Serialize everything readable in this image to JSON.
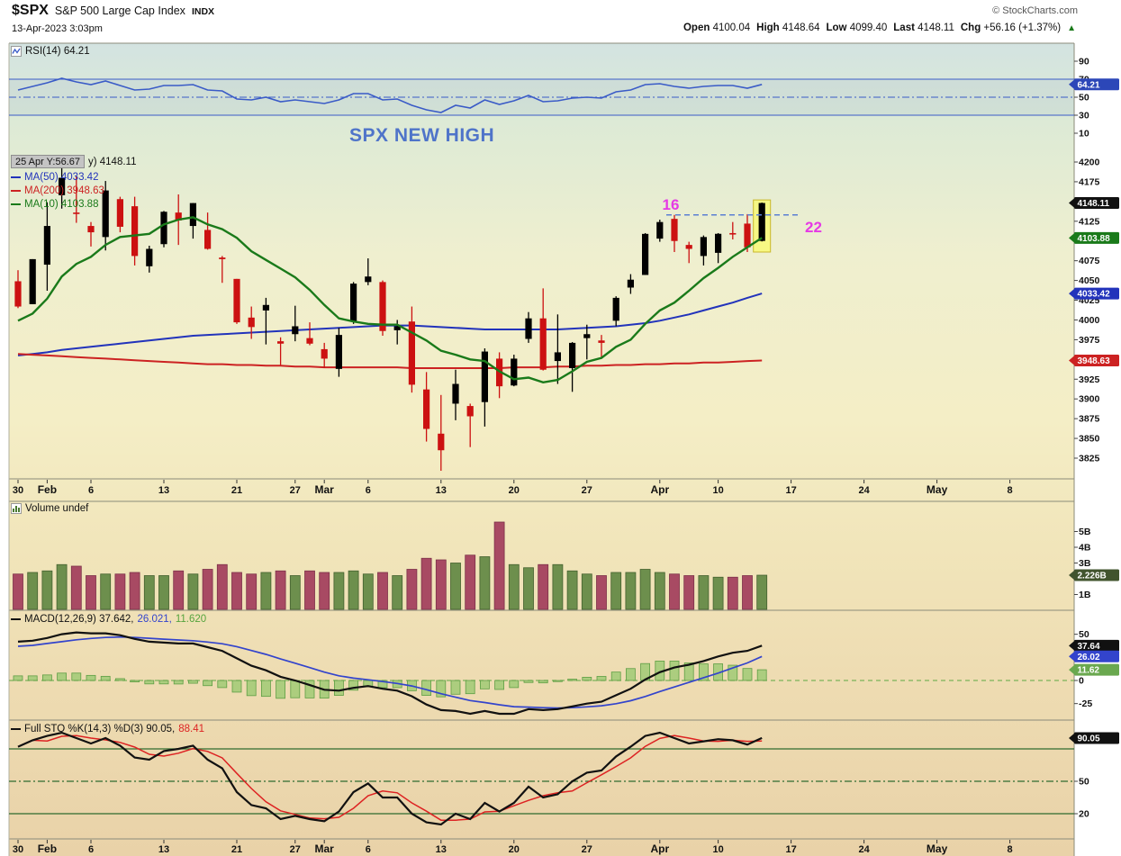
{
  "header": {
    "symbol": "$SPX",
    "name": "S&P 500 Large Cap Index",
    "exchange": "INDX",
    "copyright": "© StockCharts.com",
    "datetime": "13-Apr-2023 3:03pm",
    "quote": {
      "open_label": "Open",
      "open": "4100.04",
      "high_label": "High",
      "high": "4148.64",
      "low_label": "Low",
      "low": "4099.40",
      "last_label": "Last",
      "last": "4148.11",
      "chg_label": "Chg",
      "chg": "+56.16 (+1.37%)",
      "arrow": "▲"
    }
  },
  "panels": {
    "rsi": {
      "legend": "RSI(14) 64.21"
    },
    "price": {
      "tooltip": "25 Apr Y:56.67",
      "title_tail": "y) 4148.11",
      "ma50_label": "MA(50) 4033.42",
      "ma200_label": "MA(200) 3948.63",
      "ma10_label": "MA(10) 4103.88",
      "annotation": "SPX NEW HIGH"
    },
    "volume": {
      "legend": "Volume undef"
    },
    "macd": {
      "legend_main": "MACD(12,26,9) 37.642,",
      "legend_signal": "26.021,",
      "legend_hist": "11.620"
    },
    "sto": {
      "legend_main": "Full STO %K(14,3) %D(3) 90.05,",
      "legend_d": "88.41"
    }
  },
  "x_axis": {
    "ticks": [
      {
        "t": "30",
        "i": 0,
        "b": 0
      },
      {
        "t": "Feb",
        "i": 2,
        "b": 1
      },
      {
        "t": "6",
        "i": 5,
        "b": 0
      },
      {
        "t": "13",
        "i": 10,
        "b": 0
      },
      {
        "t": "21",
        "i": 15,
        "b": 0
      },
      {
        "t": "27",
        "i": 19,
        "b": 0
      },
      {
        "t": "Mar",
        "i": 21,
        "b": 1
      },
      {
        "t": "6",
        "i": 24,
        "b": 0
      },
      {
        "t": "13",
        "i": 29,
        "b": 0
      },
      {
        "t": "20",
        "i": 34,
        "b": 0
      },
      {
        "t": "27",
        "i": 39,
        "b": 0
      },
      {
        "t": "Apr",
        "i": 44,
        "b": 1
      },
      {
        "t": "10",
        "i": 48,
        "b": 0
      },
      {
        "t": "17",
        "i": 53,
        "b": 0
      },
      {
        "t": "24",
        "i": 58,
        "b": 0
      },
      {
        "t": "May",
        "i": 63,
        "b": 1
      },
      {
        "t": "8",
        "i": 68,
        "b": 0
      }
    ]
  },
  "chart_data": [
    {
      "type": "line",
      "panel": "rsi",
      "title": "RSI(14) 64.21",
      "ylim": [
        0,
        100
      ],
      "color": "#3a5bc7",
      "last": 64.21,
      "last_label": "64.21",
      "hlines": [
        {
          "v": 70,
          "style": "solid"
        },
        {
          "v": 50,
          "style": "dashdot"
        },
        {
          "v": 30,
          "style": "solid"
        }
      ],
      "yticks": [
        90,
        70,
        50,
        30,
        10
      ],
      "values": [
        58,
        62,
        66,
        71,
        67,
        64,
        68,
        63,
        58,
        59,
        63,
        63,
        64,
        58,
        57,
        48,
        47,
        50,
        45,
        47,
        45,
        43,
        47,
        54,
        54,
        47,
        48,
        41,
        36,
        33,
        41,
        38,
        47,
        42,
        46,
        52,
        45,
        46,
        49,
        50,
        49,
        56,
        58,
        64,
        65,
        62,
        60,
        62,
        63,
        63,
        60,
        64.21
      ]
    },
    {
      "type": "candlestick",
      "panel": "price",
      "title": "$SPX (Daily) 4148.11",
      "up_color": "#000000",
      "down_color": "#cc1111",
      "dates": [
        "Jan 30",
        "Jan 31",
        "Feb 1",
        "Feb 2",
        "Feb 3",
        "Feb 6",
        "Feb 7",
        "Feb 8",
        "Feb 9",
        "Feb 10",
        "Feb 13",
        "Feb 14",
        "Feb 15",
        "Feb 16",
        "Feb 17",
        "Feb 21",
        "Feb 22",
        "Feb 23",
        "Feb 24",
        "Feb 27",
        "Feb 28",
        "Mar 1",
        "Mar 2",
        "Mar 3",
        "Mar 6",
        "Mar 7",
        "Mar 8",
        "Mar 9",
        "Mar 10",
        "Mar 13",
        "Mar 14",
        "Mar 15",
        "Mar 16",
        "Mar 17",
        "Mar 20",
        "Mar 21",
        "Mar 22",
        "Mar 23",
        "Mar 24",
        "Mar 27",
        "Mar 28",
        "Mar 29",
        "Mar 30",
        "Mar 31",
        "Apr 3",
        "Apr 4",
        "Apr 5",
        "Apr 6",
        "Apr 10",
        "Apr 11",
        "Apr 12",
        "Apr 13"
      ],
      "ohlc": [
        [
          4049,
          4063,
          4015,
          4017
        ],
        [
          4020,
          4077,
          4020,
          4077
        ],
        [
          4070,
          4149,
          4037,
          4119
        ],
        [
          4158,
          4195,
          4141,
          4180
        ],
        [
          4136,
          4182,
          4123,
          4136
        ],
        [
          4119,
          4124,
          4093,
          4111
        ],
        [
          4105,
          4176,
          4088,
          4164
        ],
        [
          4153,
          4156,
          4111,
          4118
        ],
        [
          4144,
          4156,
          4069,
          4081
        ],
        [
          4068,
          4094,
          4060,
          4090
        ],
        [
          4096,
          4138,
          4092,
          4137
        ],
        [
          4126,
          4159,
          4095,
          4136
        ],
        [
          4119,
          4148,
          4103,
          4148
        ],
        [
          4114,
          4136,
          4089,
          4090
        ],
        [
          4077,
          4081,
          4047,
          4079
        ],
        [
          4052,
          4052,
          3995,
          3997
        ],
        [
          4003,
          4017,
          3976,
          3991
        ],
        [
          4019,
          4028,
          3969,
          4012
        ],
        [
          3973,
          3978,
          3943,
          3970
        ],
        [
          3992,
          4018,
          3973,
          3982
        ],
        [
          3977,
          3997,
          3968,
          3970
        ],
        [
          3963,
          3971,
          3939,
          3951
        ],
        [
          3938,
          3990,
          3928,
          3981
        ],
        [
          3998,
          4048,
          3995,
          4046
        ],
        [
          4055,
          4078,
          4044,
          4048
        ],
        [
          4048,
          4050,
          3980,
          3986
        ],
        [
          3987,
          4000,
          3969,
          3992
        ],
        [
          3998,
          4017,
          3908,
          3918
        ],
        [
          3912,
          3934,
          3846,
          3862
        ],
        [
          3835,
          3905,
          3809,
          3856
        ],
        [
          3894,
          3937,
          3873,
          3919
        ],
        [
          3878,
          3894,
          3839,
          3891
        ],
        [
          3896,
          3964,
          3865,
          3960
        ],
        [
          3951,
          3959,
          3901,
          3916
        ],
        [
          3917,
          3956,
          3916,
          3951
        ],
        [
          3976,
          4010,
          3971,
          4002
        ],
        [
          4002,
          4040,
          3936,
          3937
        ],
        [
          3959,
          4007,
          3919,
          3948
        ],
        [
          3939,
          3972,
          3909,
          3971
        ],
        [
          3982,
          3994,
          3950,
          3977
        ],
        [
          3974,
          3981,
          3951,
          3971
        ],
        [
          3999,
          4030,
          3992,
          4028
        ],
        [
          4041,
          4058,
          4033,
          4051
        ],
        [
          4057,
          4110,
          4057,
          4109
        ],
        [
          4103,
          4127,
          4099,
          4124
        ],
        [
          4128,
          4133,
          4086,
          4100
        ],
        [
          4095,
          4099,
          4072,
          4090
        ],
        [
          4081,
          4107,
          4069,
          4105
        ],
        [
          4085,
          4110,
          4072,
          4109.11
        ],
        [
          4110,
          4124,
          4102,
          4108.94
        ],
        [
          4122,
          4134,
          4086,
          4091.95
        ],
        [
          4100.04,
          4148.64,
          4099.4,
          4148.11
        ]
      ],
      "overlays": [
        {
          "name": "MA(10)",
          "color": "#1a7a1a",
          "width": 2.4,
          "values": [
            3999,
            4008,
            4027,
            4055,
            4071,
            4080,
            4095,
            4105,
            4107,
            4109,
            4121,
            4127,
            4130,
            4121,
            4115,
            4104,
            4087,
            4076,
            4065,
            4054,
            4038,
            4019,
            4002,
            3998,
            3995,
            3994,
            3994,
            3984,
            3974,
            3961,
            3956,
            3950,
            3948,
            3935,
            3925,
            3927,
            3921,
            3924,
            3935,
            3947,
            3952,
            3966,
            3975,
            3995,
            4012,
            4022,
            4037,
            4053,
            4066,
            4080,
            4092,
            4103.88
          ]
        },
        {
          "name": "MA(50)",
          "color": "#2233bb",
          "width": 2,
          "values": [
            3955,
            3957,
            3959,
            3962,
            3964,
            3966,
            3968,
            3970,
            3972,
            3974,
            3976,
            3978,
            3980,
            3981,
            3982,
            3983,
            3984,
            3985,
            3986,
            3987,
            3988,
            3989,
            3990,
            3991,
            3992,
            3993,
            3993,
            3993,
            3992,
            3991,
            3990,
            3989,
            3988,
            3988,
            3988,
            3988,
            3988,
            3988,
            3989,
            3990,
            3991,
            3992,
            3994,
            3996,
            3999,
            4003,
            4007,
            4012,
            4017,
            4022,
            4028,
            4033.42
          ]
        },
        {
          "name": "MA(200)",
          "color": "#cc2222",
          "width": 2,
          "values": [
            3957,
            3956,
            3955,
            3954,
            3953,
            3952,
            3951,
            3950,
            3949,
            3948,
            3947,
            3946,
            3945,
            3944,
            3944,
            3943,
            3943,
            3942,
            3942,
            3941,
            3941,
            3940,
            3940,
            3940,
            3940,
            3940,
            3940,
            3939,
            3939,
            3939,
            3939,
            3939,
            3939,
            3939,
            3940,
            3940,
            3940,
            3941,
            3941,
            3942,
            3942,
            3943,
            3943,
            3944,
            3944,
            3945,
            3945,
            3946,
            3946,
            3947,
            3948,
            3948.63
          ]
        }
      ],
      "yticks": [
        4200,
        4175,
        4125,
        4075,
        4050,
        4025,
        4000,
        3975,
        3925,
        3900,
        3875,
        3850,
        3825
      ],
      "price_boxes": [
        {
          "label": "4148.11",
          "v": 4148.11,
          "color": "#111111"
        },
        {
          "label": "4103.88",
          "v": 4103.88,
          "color": "#1a7a1a"
        },
        {
          "label": "4033.42",
          "v": 4033.42,
          "color": "#2233bb"
        },
        {
          "label": "3948.63",
          "v": 3948.63,
          "color": "#cc2222"
        }
      ],
      "annotations": {
        "m16": "16",
        "m22": "22",
        "line_price": 4133,
        "highlight_idx": 51,
        "highlight_top": 4152,
        "highlight_bottom": 4086,
        "marker_color": "#e53ae5",
        "line_color": "#5b7fd4"
      }
    },
    {
      "type": "bar",
      "panel": "volume",
      "title": "Volume undef",
      "up_color": "#6d8f4d",
      "down_color": "#a84a63",
      "yticks": [
        {
          "t": "5B",
          "v": 5
        },
        {
          "t": "4B",
          "v": 4
        },
        {
          "t": "3B",
          "v": 3
        },
        {
          "t": "1B",
          "v": 1
        }
      ],
      "last_label": "2.226B",
      "last_v": 2.2268,
      "values": [
        2.3,
        2.4,
        2.5,
        2.9,
        2.8,
        2.2,
        2.3,
        2.3,
        2.4,
        2.2,
        2.2,
        2.5,
        2.3,
        2.6,
        2.9,
        2.4,
        2.3,
        2.4,
        2.5,
        2.2,
        2.5,
        2.4,
        2.4,
        2.5,
        2.3,
        2.4,
        2.2,
        2.6,
        3.3,
        3.2,
        3.0,
        3.5,
        3.4,
        5.6,
        2.9,
        2.7,
        2.9,
        2.9,
        2.5,
        2.3,
        2.2,
        2.4,
        2.4,
        2.6,
        2.4,
        2.3,
        2.2,
        2.2,
        2.1,
        2.1,
        2.2,
        2.2268
      ]
    },
    {
      "type": "line",
      "panel": "macd",
      "title": "MACD(12,26,9) 37.642, 26.021, 11.620",
      "yticks": [
        {
          "t": "50",
          "v": 50
        },
        {
          "t": "0",
          "v": 0
        },
        {
          "t": "-25",
          "v": -25
        }
      ],
      "boxes": [
        {
          "label": "37.64",
          "v": 37.642,
          "color": "#111111"
        },
        {
          "label": "26.02",
          "v": 26.021,
          "color": "#3344cc"
        },
        {
          "label": "11.62",
          "v": 11.621,
          "color": "#6aa84f"
        }
      ],
      "macd": [
        42,
        43,
        46,
        50,
        52,
        51,
        51,
        49,
        45,
        42,
        41,
        40,
        40,
        36,
        32,
        24,
        16,
        11,
        4,
        0,
        -5,
        -10,
        -11,
        -8,
        -6,
        -9,
        -11,
        -17,
        -26,
        -32,
        -33,
        -36,
        -33,
        -36,
        -36,
        -31,
        -32,
        -31,
        -28,
        -25,
        -23,
        -16,
        -9,
        1,
        9,
        14,
        17,
        21,
        26,
        30,
        32,
        37.642
      ],
      "signal": [
        37,
        38,
        40,
        42,
        44,
        45.5,
        46.5,
        47,
        46.5,
        45.7,
        44.7,
        43.8,
        43,
        41.6,
        39.7,
        36.6,
        32.4,
        28.2,
        23.3,
        18.7,
        13.9,
        9.1,
        5.1,
        2.5,
        0.8,
        -1.2,
        -3.2,
        -5.9,
        -9.9,
        -14.3,
        -18.1,
        -21.7,
        -23.9,
        -26.3,
        -28.3,
        -28.8,
        -29.4,
        -29.8,
        -29.4,
        -28.5,
        -27.4,
        -25.1,
        -21.9,
        -17.3,
        -12,
        -7,
        -2,
        3,
        8,
        13.5,
        19,
        26.021
      ]
    },
    {
      "type": "line",
      "panel": "sto",
      "title": "Full STO %K(14,3) %D(3) 90.05, 88.41",
      "hlines": [
        {
          "v": 80,
          "style": "solid"
        },
        {
          "v": 50,
          "style": "dashdot"
        },
        {
          "v": 20,
          "style": "solid"
        }
      ],
      "yticks": [
        {
          "t": "50",
          "v": 50
        },
        {
          "t": "20",
          "v": 20
        }
      ],
      "boxes": [
        {
          "label": "90.05",
          "v": 90.05,
          "color": "#111111"
        }
      ],
      "k": [
        82,
        88,
        92,
        95,
        90,
        85,
        90,
        83,
        72,
        70,
        78,
        80,
        83,
        70,
        62,
        40,
        28,
        25,
        15,
        18,
        15,
        13,
        22,
        40,
        48,
        35,
        35,
        20,
        12,
        10,
        20,
        15,
        30,
        22,
        30,
        45,
        35,
        38,
        50,
        58,
        60,
        73,
        82,
        92,
        95,
        90,
        85,
        87,
        89,
        88,
        84,
        90.05
      ],
      "d_last": 88.41
    }
  ]
}
